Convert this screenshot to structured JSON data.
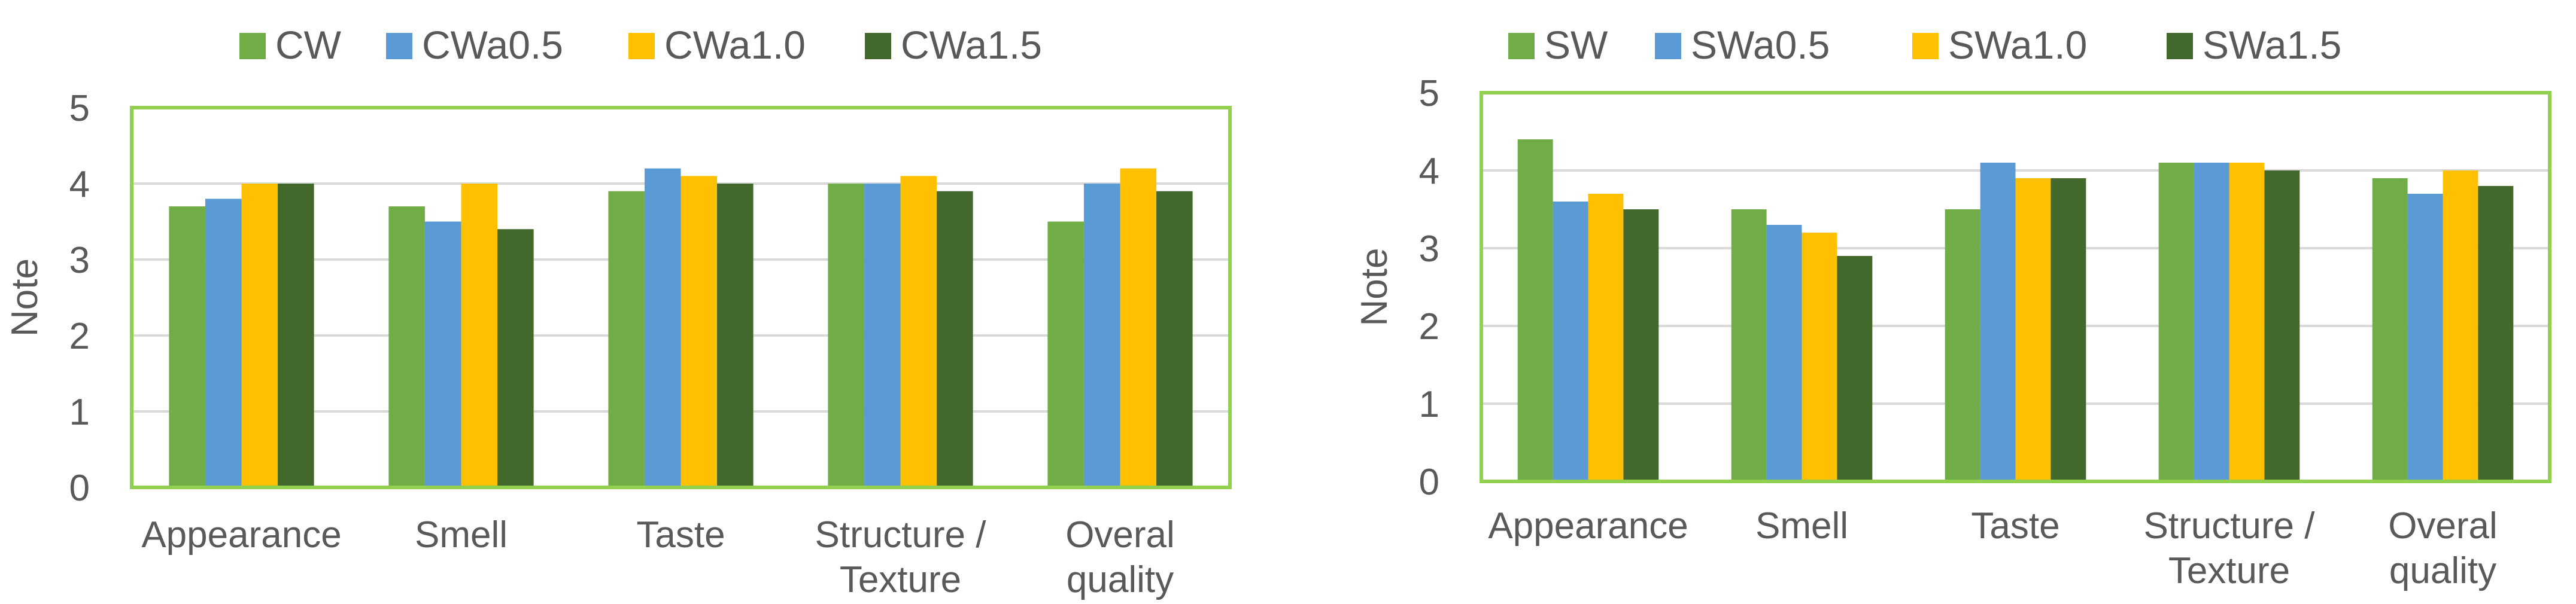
{
  "chart_data": [
    {
      "type": "bar",
      "categories": [
        [
          "Appearance"
        ],
        [
          "Smell"
        ],
        [
          "Taste"
        ],
        [
          "Structure /",
          "Texture"
        ],
        [
          "Overal",
          "quality"
        ]
      ],
      "series": [
        {
          "name": "CW",
          "color": "#70AD47",
          "values": [
            3.7,
            3.7,
            3.9,
            4.0,
            3.5
          ]
        },
        {
          "name": "CWa0.5",
          "color": "#5B9BD5",
          "values": [
            3.8,
            3.5,
            4.2,
            4.0,
            4.0
          ]
        },
        {
          "name": "CWa1.0",
          "color": "#FFC000",
          "values": [
            4.0,
            4.0,
            4.1,
            4.1,
            4.2
          ]
        },
        {
          "name": "CWa1.5",
          "color": "#43682B",
          "values": [
            4.0,
            3.4,
            4.0,
            3.9,
            3.9
          ]
        }
      ],
      "title": "",
      "xlabel": "",
      "ylabel": "Note",
      "ylim": [
        0,
        5
      ],
      "yticks": [
        "0",
        "1",
        "2",
        "3",
        "4",
        "5"
      ],
      "grid": true,
      "legend": "top",
      "frame_color": "#92D050",
      "gridline_color": "#D9D9D9"
    },
    {
      "type": "bar",
      "categories": [
        [
          "Appearance"
        ],
        [
          "Smell"
        ],
        [
          "Taste"
        ],
        [
          "Structure /",
          "Texture"
        ],
        [
          "Overal",
          "quality"
        ]
      ],
      "series": [
        {
          "name": "SW",
          "color": "#70AD47",
          "values": [
            4.4,
            3.5,
            3.5,
            4.1,
            3.9
          ]
        },
        {
          "name": "SWa0.5",
          "color": "#5B9BD5",
          "values": [
            3.6,
            3.3,
            4.1,
            4.1,
            3.7
          ]
        },
        {
          "name": "SWa1.0",
          "color": "#FFC000",
          "values": [
            3.7,
            3.2,
            3.9,
            4.1,
            4.0
          ]
        },
        {
          "name": "SWa1.5",
          "color": "#43682B",
          "values": [
            3.5,
            2.9,
            3.9,
            4.0,
            3.8
          ]
        }
      ],
      "title": "",
      "xlabel": "",
      "ylabel": "Note",
      "ylim": [
        0,
        5
      ],
      "yticks": [
        "0",
        "1",
        "2",
        "3",
        "4",
        "5"
      ],
      "grid": true,
      "legend": "top",
      "frame_color": "#92D050",
      "gridline_color": "#D9D9D9"
    }
  ]
}
